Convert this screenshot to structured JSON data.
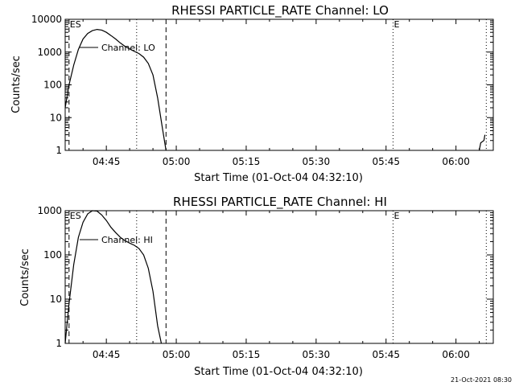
{
  "timestamp": "21-Oct-2021 08:30",
  "chart_data": [
    {
      "type": "line",
      "title": "RHESSI PARTICLE_RATE Channel: LO",
      "xlabel": "Start Time (01-Oct-04 04:32:10)",
      "ylabel": "Counts/sec",
      "yscale": "log",
      "xlim_minutes": [
        36.17,
        128.0
      ],
      "ylim": [
        1,
        10000
      ],
      "xtick_labels": [
        {
          "t": 45,
          "label": "04:45"
        },
        {
          "t": 60,
          "label": "05:00"
        },
        {
          "t": 75,
          "label": "05:15"
        },
        {
          "t": 90,
          "label": "05:30"
        },
        {
          "t": 105,
          "label": "05:45"
        },
        {
          "t": 120,
          "label": "06:00"
        }
      ],
      "ytick_labels": [
        {
          "v": 1,
          "label": "1"
        },
        {
          "v": 10,
          "label": "10"
        },
        {
          "v": 100,
          "label": "100"
        },
        {
          "v": 1000,
          "label": "1000"
        },
        {
          "v": 10000,
          "label": "10000"
        }
      ],
      "legend": {
        "label": "Channel: LO",
        "position": "top-left"
      },
      "markers": [
        {
          "t": 37.0,
          "style": "dashed",
          "label": "ES"
        },
        {
          "t": 51.5,
          "style": "dotted",
          "label": ""
        },
        {
          "t": 57.8,
          "style": "dashed",
          "label": ""
        },
        {
          "t": 106.5,
          "style": "dotted",
          "label": "E"
        },
        {
          "t": 126.5,
          "style": "dotted",
          "label": ""
        }
      ],
      "series": [
        {
          "values": [
            [
              36.17,
              20
            ],
            [
              37.0,
              100
            ],
            [
              38.0,
              400
            ],
            [
              39.0,
              1200
            ],
            [
              40.0,
              2500
            ],
            [
              41.0,
              3700
            ],
            [
              42.0,
              4500
            ],
            [
              43.0,
              4900
            ],
            [
              44.0,
              4700
            ],
            [
              45.0,
              4000
            ],
            [
              46.0,
              3200
            ],
            [
              47.0,
              2500
            ],
            [
              48.0,
              1900
            ],
            [
              49.0,
              1500
            ],
            [
              50.0,
              1250
            ],
            [
              51.0,
              1050
            ],
            [
              52.0,
              900
            ],
            [
              53.0,
              700
            ],
            [
              54.0,
              450
            ],
            [
              55.0,
              200
            ],
            [
              56.0,
              40
            ],
            [
              57.0,
              5
            ],
            [
              57.8,
              1
            ]
          ]
        },
        {
          "values": [
            [
              125.0,
              1
            ],
            [
              125.3,
              1.7
            ],
            [
              126.0,
              2
            ],
            [
              126.2,
              3
            ]
          ]
        }
      ]
    },
    {
      "type": "line",
      "title": "RHESSI PARTICLE_RATE Channel: HI",
      "xlabel": "Start Time (01-Oct-04 04:32:10)",
      "ylabel": "Counts/sec",
      "yscale": "log",
      "xlim_minutes": [
        36.17,
        128.0
      ],
      "ylim": [
        1,
        1000
      ],
      "xtick_labels": [
        {
          "t": 45,
          "label": "04:45"
        },
        {
          "t": 60,
          "label": "05:00"
        },
        {
          "t": 75,
          "label": "05:15"
        },
        {
          "t": 90,
          "label": "05:30"
        },
        {
          "t": 105,
          "label": "05:45"
        },
        {
          "t": 120,
          "label": "06:00"
        }
      ],
      "ytick_labels": [
        {
          "v": 1,
          "label": "1"
        },
        {
          "v": 10,
          "label": "10"
        },
        {
          "v": 100,
          "label": "100"
        },
        {
          "v": 1000,
          "label": "1000"
        }
      ],
      "legend": {
        "label": "Channel: HI",
        "position": "top-left"
      },
      "markers": [
        {
          "t": 37.0,
          "style": "dashed",
          "label": "ES"
        },
        {
          "t": 51.5,
          "style": "dotted",
          "label": ""
        },
        {
          "t": 57.8,
          "style": "dashed",
          "label": ""
        },
        {
          "t": 106.5,
          "style": "dotted",
          "label": "E"
        },
        {
          "t": 126.5,
          "style": "dotted",
          "label": ""
        }
      ],
      "series": [
        {
          "values": [
            [
              36.17,
              1
            ],
            [
              37.0,
              8
            ],
            [
              38.0,
              60
            ],
            [
              39.0,
              250
            ],
            [
              40.0,
              550
            ],
            [
              41.0,
              850
            ],
            [
              42.0,
              1000
            ],
            [
              43.0,
              980
            ],
            [
              44.0,
              800
            ],
            [
              45.0,
              600
            ],
            [
              46.0,
              420
            ],
            [
              47.0,
              320
            ],
            [
              48.0,
              250
            ],
            [
              49.0,
              210
            ],
            [
              50.0,
              185
            ],
            [
              51.0,
              165
            ],
            [
              52.0,
              140
            ],
            [
              53.0,
              100
            ],
            [
              54.0,
              50
            ],
            [
              55.0,
              15
            ],
            [
              56.0,
              2.5
            ],
            [
              56.8,
              1
            ]
          ]
        }
      ]
    }
  ]
}
